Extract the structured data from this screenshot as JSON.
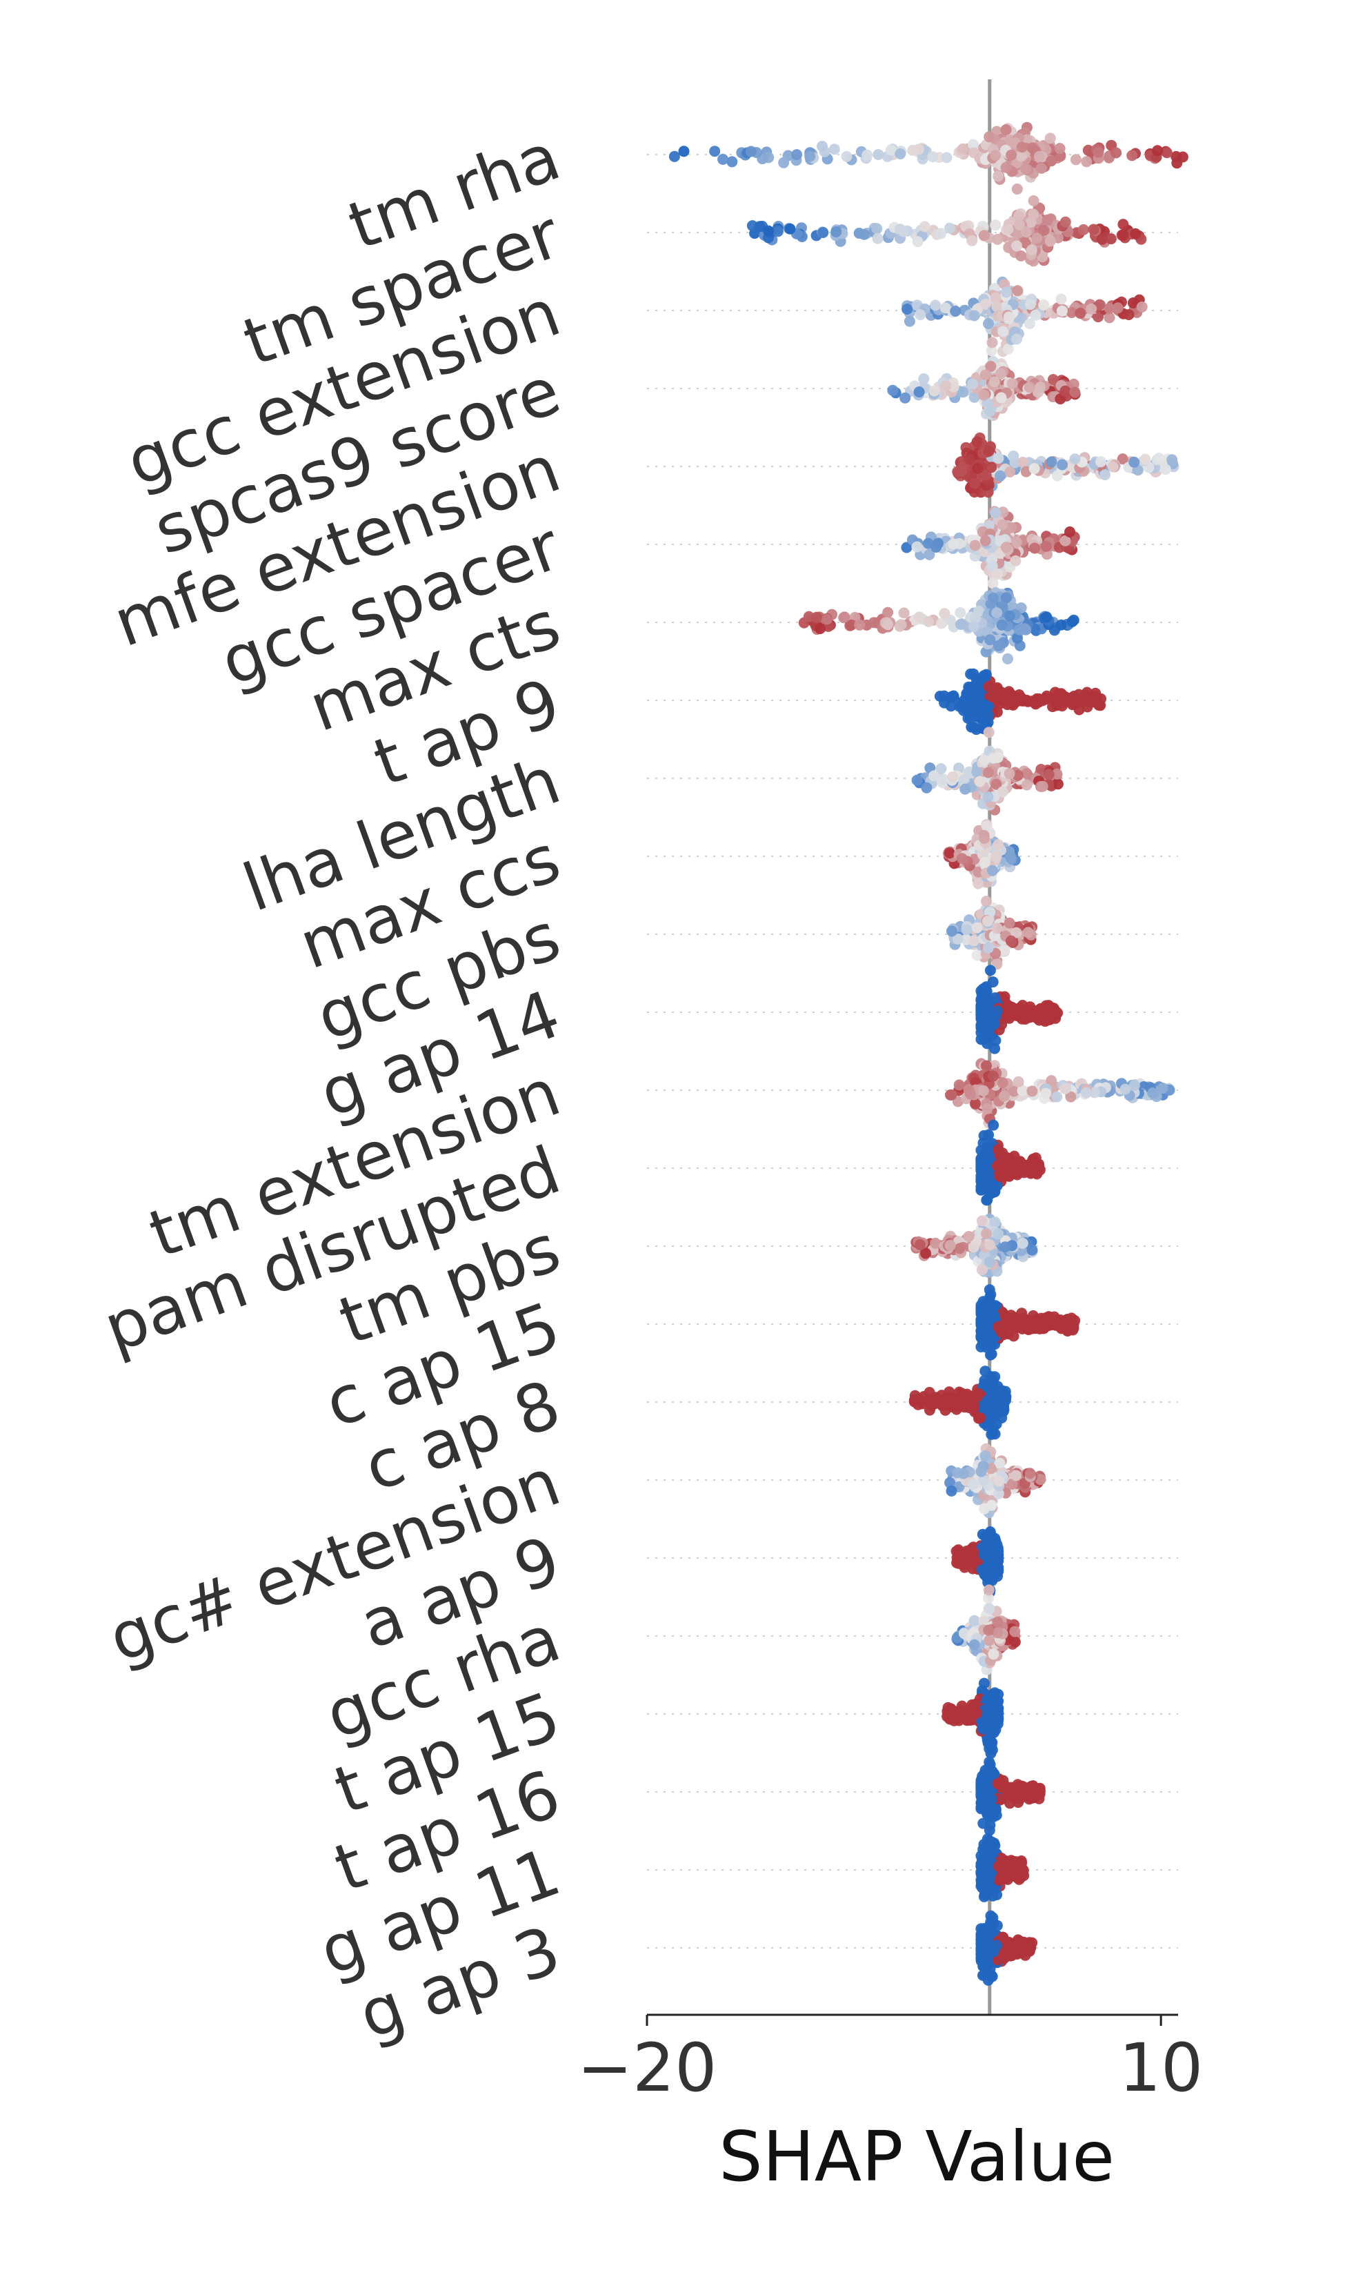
{
  "chart_data": {
    "type": "scatter",
    "subtype": "shap-beeswarm",
    "title": "",
    "xlabel": "SHAP Value",
    "ylabel": "",
    "xlim": [
      -20,
      11
    ],
    "x_ticks": [
      -20,
      10
    ],
    "x_tick_labels": [
      "−20",
      "10"
    ],
    "zero_line": 0,
    "grid": false,
    "legend": "none",
    "colors": {
      "low": "#2166c0",
      "mid": "#e8e8e8",
      "high": "#b0333a"
    },
    "features": [
      {
        "name": "tm rha",
        "min": -19,
        "max": 11.5,
        "center": 1.5,
        "spread": 0.9,
        "dense": 0.55,
        "low_side": "left",
        "coloring": "gradient"
      },
      {
        "name": "tm spacer",
        "min": -14,
        "max": 9,
        "center": 2.5,
        "spread": 0.7,
        "dense": 0.55,
        "low_side": "left",
        "coloring": "gradient"
      },
      {
        "name": "gcc extension",
        "min": -5,
        "max": 9,
        "center": 1.0,
        "spread": 0.6,
        "dense": 0.5,
        "low_side": "left",
        "coloring": "mixed"
      },
      {
        "name": "spcas9 score",
        "min": -6,
        "max": 5,
        "center": 0.2,
        "spread": 0.55,
        "dense": 0.45,
        "low_side": "left",
        "coloring": "mixed"
      },
      {
        "name": "mfe extension",
        "min": -2,
        "max": 11,
        "center": -0.5,
        "spread": 0.55,
        "dense": 0.5,
        "low_side": "right",
        "coloring": "high_left"
      },
      {
        "name": "gcc spacer",
        "min": -5,
        "max": 5,
        "center": 0.5,
        "spread": 0.6,
        "dense": 0.5,
        "low_side": "left",
        "coloring": "mixed"
      },
      {
        "name": "max cts",
        "min": -11,
        "max": 5,
        "center": 0.6,
        "spread": 0.7,
        "dense": 0.55,
        "low_side": "right",
        "coloring": "gradient"
      },
      {
        "name": "t ap 9",
        "min": -3,
        "max": 6.5,
        "center": -0.5,
        "spread": 0.5,
        "dense": 0.5,
        "low_side": "left",
        "coloring": "binary"
      },
      {
        "name": "lha length",
        "min": -4.5,
        "max": 4,
        "center": 0.0,
        "spread": 0.55,
        "dense": 0.45,
        "low_side": "left",
        "coloring": "mixed"
      },
      {
        "name": "max ccs",
        "min": -2.5,
        "max": 1.5,
        "center": -0.3,
        "spread": 0.4,
        "dense": 0.4,
        "low_side": "right",
        "coloring": "mixed"
      },
      {
        "name": "gcc pbs",
        "min": -2.5,
        "max": 2.5,
        "center": 0.0,
        "spread": 0.55,
        "dense": 0.45,
        "low_side": "left",
        "coloring": "mixed"
      },
      {
        "name": "g ap 14",
        "min": -0.5,
        "max": 4,
        "center": 0.0,
        "spread": 0.45,
        "dense": 0.45,
        "low_side": "left",
        "coloring": "binary"
      },
      {
        "name": "tm extension",
        "min": -2.5,
        "max": 10.5,
        "center": 0.0,
        "spread": 0.55,
        "dense": 0.45,
        "low_side": "right",
        "coloring": "mixed"
      },
      {
        "name": "pam disrupted",
        "min": -0.5,
        "max": 3,
        "center": 0.0,
        "spread": 0.45,
        "dense": 0.45,
        "low_side": "left",
        "coloring": "binary"
      },
      {
        "name": "tm pbs",
        "min": -4.5,
        "max": 2.5,
        "center": 0.0,
        "spread": 0.45,
        "dense": 0.4,
        "low_side": "right",
        "coloring": "mixed"
      },
      {
        "name": "c ap 15",
        "min": -0.5,
        "max": 5,
        "center": 0.0,
        "spread": 0.4,
        "dense": 0.45,
        "low_side": "left",
        "coloring": "binary"
      },
      {
        "name": "c ap 8",
        "min": -4.5,
        "max": 1,
        "center": 0.0,
        "spread": 0.4,
        "dense": 0.45,
        "low_side": "right",
        "coloring": "binary_rev"
      },
      {
        "name": "gc# extension",
        "min": -2.5,
        "max": 3,
        "center": 0.0,
        "spread": 0.45,
        "dense": 0.4,
        "low_side": "left",
        "coloring": "mixed"
      },
      {
        "name": "a ap 9",
        "min": -2,
        "max": 0.5,
        "center": 0.0,
        "spread": 0.35,
        "dense": 0.45,
        "low_side": "right",
        "coloring": "binary_rev"
      },
      {
        "name": "gcc rha",
        "min": -2,
        "max": 1.5,
        "center": 0.0,
        "spread": 0.45,
        "dense": 0.4,
        "low_side": "left",
        "coloring": "mixed"
      },
      {
        "name": "t ap 15",
        "min": -2.5,
        "max": 0.5,
        "center": 0.0,
        "spread": 0.35,
        "dense": 0.45,
        "low_side": "right",
        "coloring": "binary_rev"
      },
      {
        "name": "t ap 16",
        "min": -0.5,
        "max": 3,
        "center": 0.0,
        "spread": 0.35,
        "dense": 0.45,
        "low_side": "left",
        "coloring": "binary"
      },
      {
        "name": "g ap 11",
        "min": -0.5,
        "max": 2,
        "center": 0.0,
        "spread": 0.35,
        "dense": 0.45,
        "low_side": "left",
        "coloring": "binary"
      },
      {
        "name": "g ap 3",
        "min": -0.5,
        "max": 2.5,
        "center": 0.0,
        "spread": 0.35,
        "dense": 0.45,
        "low_side": "left",
        "coloring": "binary"
      }
    ]
  }
}
